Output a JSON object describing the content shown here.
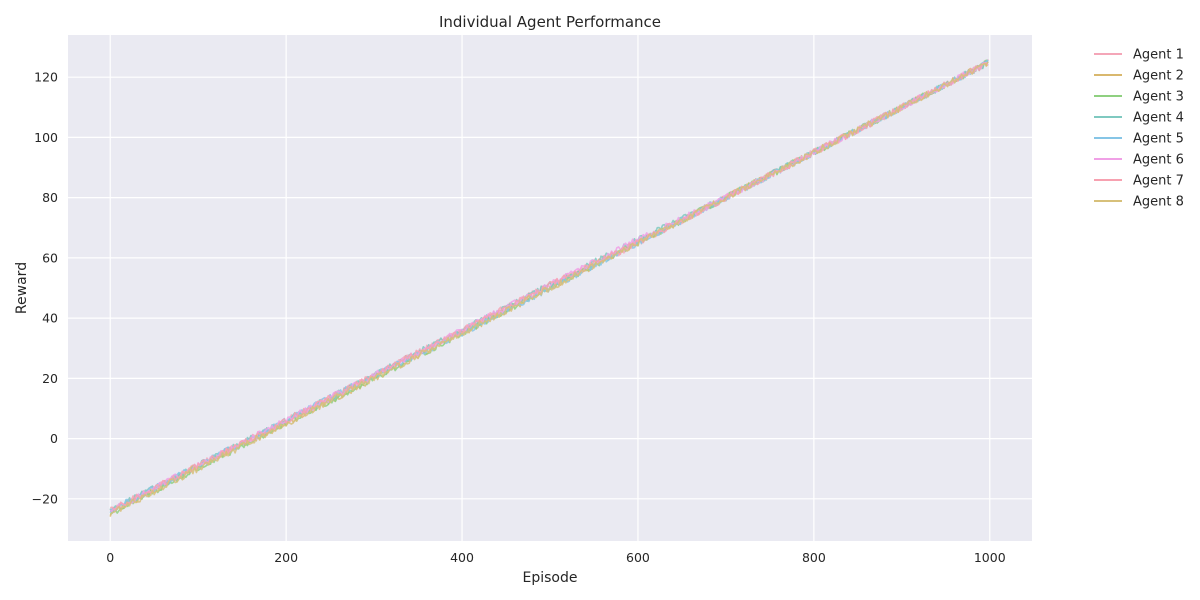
{
  "chart_data": {
    "type": "line",
    "title": "Individual Agent Performance",
    "xlabel": "Episode",
    "ylabel": "Reward",
    "xlim": [
      -48,
      1048
    ],
    "ylim": [
      -34,
      134
    ],
    "x_ticks": [
      0,
      200,
      400,
      600,
      800,
      1000
    ],
    "y_ticks": [
      -20,
      0,
      20,
      40,
      60,
      80,
      100,
      120
    ],
    "y_tick_labels": [
      "−20",
      "0",
      "20",
      "40",
      "60",
      "80",
      "100",
      "120"
    ],
    "grid": true,
    "legend_position": "outside-right",
    "x": [
      0,
      100,
      200,
      300,
      400,
      500,
      600,
      700,
      800,
      900,
      999
    ],
    "series": [
      {
        "name": "Agent 1",
        "color": "#f4a6b8",
        "values": [
          -24,
          -9,
          6,
          21,
          36,
          51,
          65,
          80,
          95,
          110,
          125
        ]
      },
      {
        "name": "Agent 2",
        "color": "#d9b86e",
        "values": [
          -25,
          -9,
          5,
          20,
          35,
          50,
          65,
          80,
          95,
          110,
          125
        ]
      },
      {
        "name": "Agent 3",
        "color": "#8fd080",
        "values": [
          -25,
          -10,
          5,
          20,
          35,
          50,
          65,
          80,
          95,
          110,
          125
        ]
      },
      {
        "name": "Agent 4",
        "color": "#7fc9c0",
        "values": [
          -24,
          -9,
          6,
          21,
          36,
          51,
          66,
          80,
          95,
          110,
          125
        ]
      },
      {
        "name": "Agent 5",
        "color": "#86c5e6",
        "values": [
          -24,
          -9,
          6,
          21,
          35,
          50,
          65,
          80,
          95,
          110,
          125
        ]
      },
      {
        "name": "Agent 6",
        "color": "#f0a0e6",
        "values": [
          -24,
          -9,
          6,
          21,
          36,
          51,
          66,
          80,
          95,
          110,
          125
        ]
      },
      {
        "name": "Agent 7",
        "color": "#f7a1b0",
        "values": [
          -24,
          -9,
          6,
          21,
          36,
          51,
          65,
          80,
          95,
          110,
          125
        ]
      },
      {
        "name": "Agent 8",
        "color": "#d7c07a",
        "values": [
          -25,
          -10,
          5,
          20,
          35,
          50,
          65,
          80,
          95,
          110,
          125
        ]
      }
    ]
  }
}
